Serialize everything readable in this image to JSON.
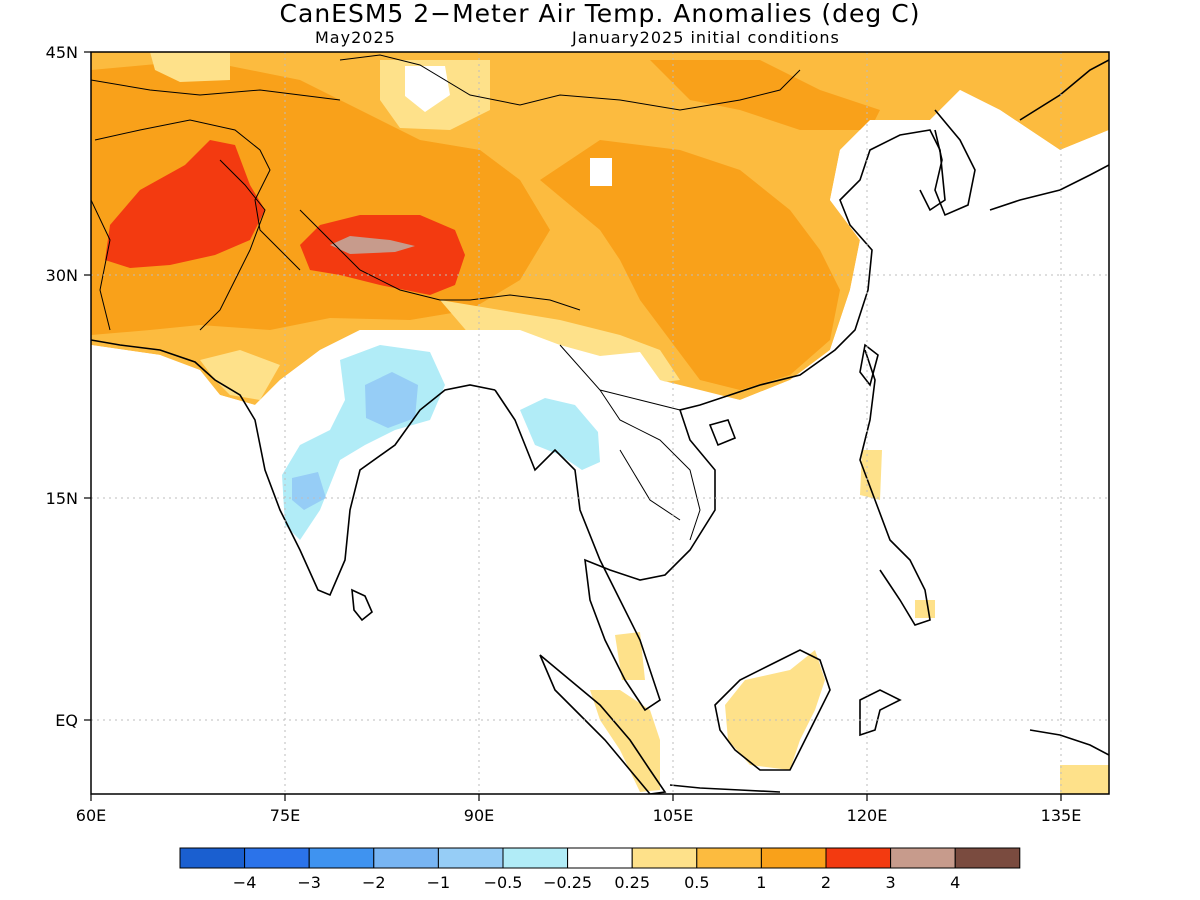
{
  "title": "CanESM5 2−Meter Air Temp. Anomalies (deg C)",
  "subtitle_left": "May2025",
  "subtitle_right": "January2025 initial conditions",
  "axes": {
    "x_ticks": [
      "60E",
      "75E",
      "90E",
      "105E",
      "120E",
      "135E"
    ],
    "y_ticks": [
      "45N",
      "30N",
      "15N",
      "EQ"
    ]
  },
  "legend": {
    "colors": [
      "#1a5fd0",
      "#2b73ea",
      "#3f93f0",
      "#78b5f3",
      "#96cdf6",
      "#b1ecf7",
      "#ffffff",
      "#fee18a",
      "#fcbb3f",
      "#f9a11a",
      "#f33a10",
      "#c79b8c",
      "#7a4b3f"
    ],
    "labels": [
      "−4",
      "−3",
      "−2",
      "−1",
      "−0.5",
      "−0.25",
      "0.25",
      "0.5",
      "1",
      "2",
      "3",
      "4"
    ]
  },
  "colors": {
    "warm_light": "#fee18a",
    "warm_mid": "#fcbb3f",
    "warm_deep": "#f9a11a",
    "hot": "#f33a10",
    "hottest": "#c79b8c",
    "cool_light": "#b1ecf7",
    "cool_mid": "#96cdf6",
    "cool_deep": "#78b5f3"
  }
}
